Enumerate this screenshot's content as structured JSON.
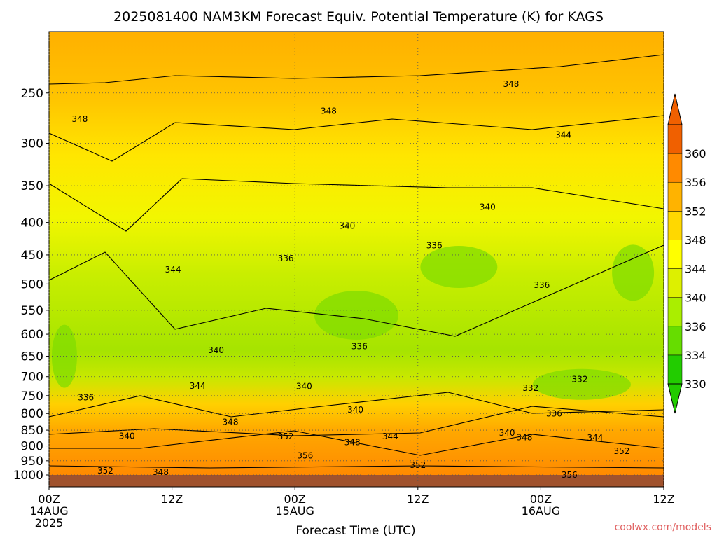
{
  "chart_data": {
    "type": "heatmap",
    "title": "2025081400 NAM3KM Forecast Equiv. Potential Temperature (K) for KAGS",
    "xlabel": "Forecast Time (UTC)",
    "ylabel": "",
    "credit": "coolwx.com/models",
    "x_ticks": [
      {
        "hour": 0,
        "lines": [
          "00Z",
          "14AUG",
          "2025"
        ]
      },
      {
        "hour": 12,
        "lines": [
          "12Z"
        ]
      },
      {
        "hour": 24,
        "lines": [
          "00Z",
          "15AUG"
        ]
      },
      {
        "hour": 36,
        "lines": [
          "12Z"
        ]
      },
      {
        "hour": 48,
        "lines": [
          "00Z",
          "16AUG"
        ]
      },
      {
        "hour": 60,
        "lines": [
          "12Z"
        ]
      }
    ],
    "xlim": [
      0,
      60
    ],
    "y_ticks": [
      250,
      300,
      350,
      400,
      450,
      500,
      550,
      600,
      650,
      700,
      750,
      800,
      850,
      900,
      950,
      1000
    ],
    "ylim": [
      200,
      1000
    ],
    "y_scale": "log",
    "grid": true,
    "colorbar": {
      "labels": [
        330,
        334,
        336,
        340,
        344,
        348,
        352,
        356,
        360
      ],
      "colors": [
        "#22cc00",
        "#66dd00",
        "#aaee00",
        "#ddf000",
        "#ffff00",
        "#ffd800",
        "#ffb300",
        "#ff8a00",
        "#f06000"
      ]
    },
    "ground_color": "#a0522d",
    "contour_labels": [
      {
        "text": "348",
        "hour": 3,
        "pres": 275
      },
      {
        "text": "348",
        "hour": 27.3,
        "pres": 267
      },
      {
        "text": "348",
        "hour": 45.1,
        "pres": 242
      },
      {
        "text": "344",
        "hour": 50.2,
        "pres": 291
      },
      {
        "text": "340",
        "hour": 42.8,
        "pres": 378
      },
      {
        "text": "340",
        "hour": 29.1,
        "pres": 405
      },
      {
        "text": "344",
        "hour": 12.1,
        "pres": 475
      },
      {
        "text": "336",
        "hour": 23.1,
        "pres": 456
      },
      {
        "text": "336",
        "hour": 37.6,
        "pres": 435
      },
      {
        "text": "336",
        "hour": 48.1,
        "pres": 502
      },
      {
        "text": "336",
        "hour": 30.3,
        "pres": 627
      },
      {
        "text": "340",
        "hour": 16.3,
        "pres": 636
      },
      {
        "text": "344",
        "hour": 14.5,
        "pres": 724
      },
      {
        "text": "336",
        "hour": 3.6,
        "pres": 755
      },
      {
        "text": "340",
        "hour": 24.9,
        "pres": 725
      },
      {
        "text": "340",
        "hour": 29.9,
        "pres": 789
      },
      {
        "text": "348",
        "hour": 17.7,
        "pres": 825
      },
      {
        "text": "340",
        "hour": 7.6,
        "pres": 868
      },
      {
        "text": "352",
        "hour": 23.1,
        "pres": 870
      },
      {
        "text": "344",
        "hour": 33.3,
        "pres": 870
      },
      {
        "text": "348",
        "hour": 29.6,
        "pres": 888
      },
      {
        "text": "340",
        "hour": 44.7,
        "pres": 858
      },
      {
        "text": "348",
        "hour": 46.4,
        "pres": 873
      },
      {
        "text": "336",
        "hour": 49.3,
        "pres": 801
      },
      {
        "text": "344",
        "hour": 53.3,
        "pres": 874
      },
      {
        "text": "332",
        "hour": 51.8,
        "pres": 707
      },
      {
        "text": "332",
        "hour": 47.0,
        "pres": 730
      },
      {
        "text": "352",
        "hour": 55.9,
        "pres": 917
      },
      {
        "text": "356",
        "hour": 25.0,
        "pres": 933
      },
      {
        "text": "352",
        "hour": 36.0,
        "pres": 965
      },
      {
        "text": "352",
        "hour": 5.5,
        "pres": 985
      },
      {
        "text": "348",
        "hour": 10.9,
        "pres": 990
      },
      {
        "text": "356",
        "hour": 50.8,
        "pres": 1000
      }
    ]
  }
}
